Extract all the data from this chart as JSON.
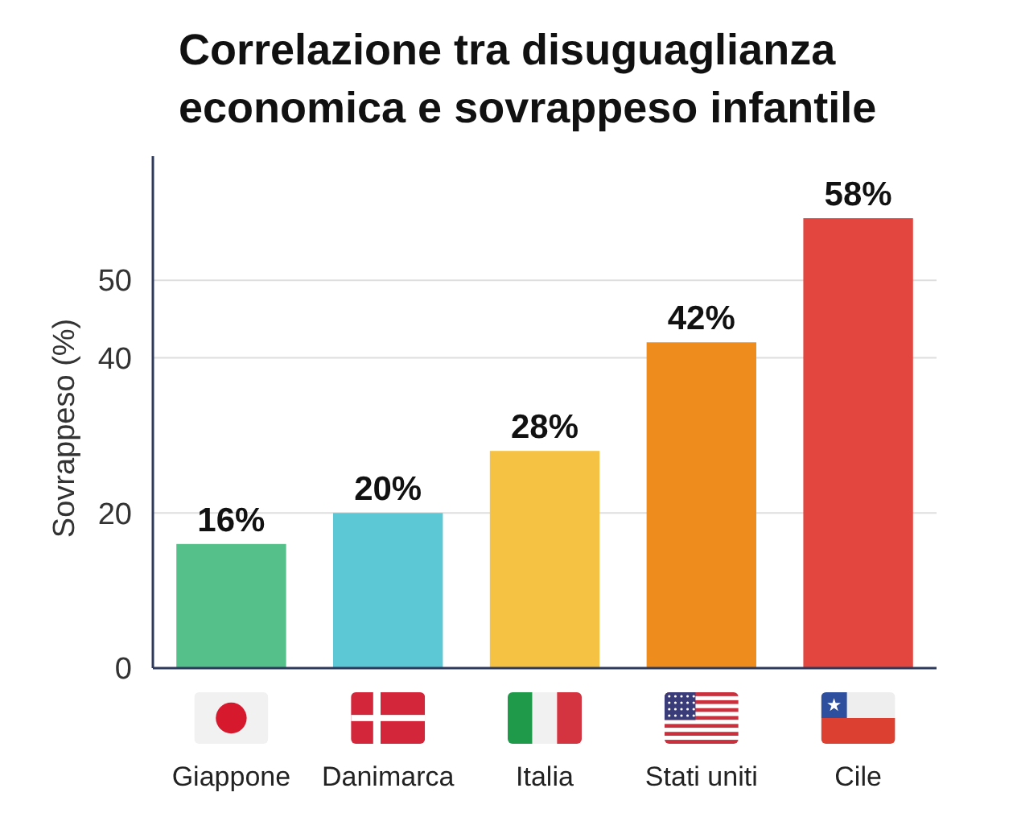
{
  "chart_data": {
    "type": "bar",
    "title": "Correlazione tra disuguaglianza economica e sovrappeso infantile",
    "ylabel": "Sovrappeso (%)",
    "categories": [
      "Giappone",
      "Danimarca",
      "Italia",
      "Stati uniti",
      "Cile"
    ],
    "values": [
      16,
      20,
      28,
      42,
      58
    ],
    "colors": [
      "#55c08a",
      "#5cc7d5",
      "#f6c243",
      "#ee8c1e",
      "#e3463f"
    ],
    "ylim": [
      0,
      66
    ],
    "yticks": [
      0,
      20,
      40,
      50
    ],
    "grid": "y",
    "value_labels": [
      "16%",
      "20%",
      "28%",
      "42%",
      "58%"
    ]
  }
}
